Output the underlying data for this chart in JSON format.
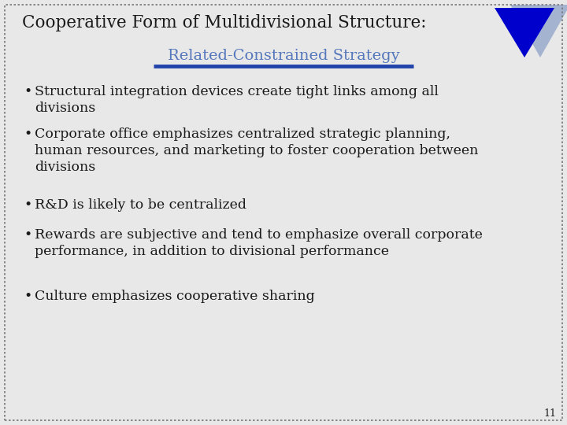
{
  "title": "Cooperative Form of Multidivisional Structure:",
  "subtitle": "Related-Constrained Strategy",
  "bullet_points": [
    "Structural integration devices create tight links among all\ndivisions",
    "Corporate office emphasizes centralized strategic planning,\nhuman resources, and marketing to foster cooperation between\ndivisions",
    "R&D is likely to be centralized",
    "Rewards are subjective and tend to emphasize overall corporate\nperformance, in addition to divisional performance",
    "Culture emphasizes cooperative sharing"
  ],
  "background_color": "#e8e8e8",
  "title_color": "#1a1a1a",
  "subtitle_color": "#5577bb",
  "subtitle_underline_color": "#2244aa",
  "bullet_color": "#1a1a1a",
  "triangle_dark_color": "#0000cc",
  "triangle_light_color": "#99aacc",
  "page_number": "11",
  "dotted_border_color": "#777777",
  "title_fontsize": 15.5,
  "subtitle_fontsize": 14,
  "bullet_fontsize": 12.5,
  "page_num_fontsize": 9
}
